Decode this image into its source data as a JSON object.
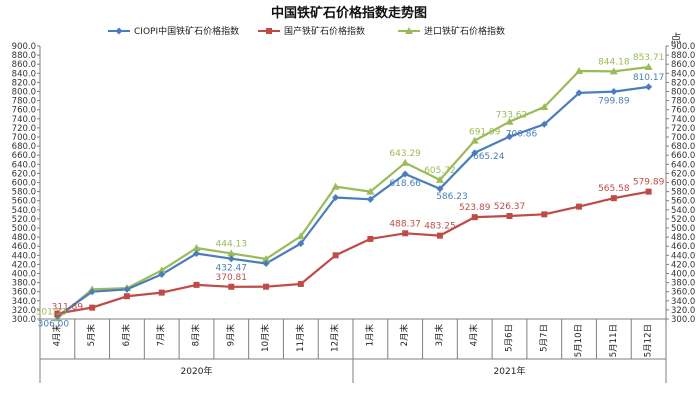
{
  "chart_data": {
    "type": "line",
    "title": "中国铁矿石价格指数走势图",
    "unit_label": "点",
    "ylim": [
      300,
      900
    ],
    "ytick_step": 20,
    "grid": false,
    "legend_position": "top",
    "categories": [
      "4月末",
      "5月末",
      "6月末",
      "7月末",
      "8月末",
      "9月末",
      "10月末",
      "11月末",
      "12月末",
      "1月末",
      "2月末",
      "3月末",
      "4月末",
      "5月6日",
      "5月7日",
      "5月10日",
      "5月11日",
      "5月12日"
    ],
    "year_groups": [
      {
        "label": "2020年",
        "start": 0,
        "end": 8
      },
      {
        "label": "2021年",
        "start": 9,
        "end": 17
      }
    ],
    "series": [
      {
        "name": "CIOPI中国铁矿石价格指数",
        "color": "#4a7ebb",
        "marker": "diamond",
        "values": [
          306.0,
          360,
          365,
          398,
          444,
          432.47,
          422,
          466,
          567,
          563,
          618.66,
          586.23,
          665.24,
          700.86,
          728,
          797,
          799.89,
          810.17
        ],
        "labels": {
          "0": "306.00",
          "5": "432.47",
          "10": "618.66",
          "11": "586.23",
          "12": "665.24",
          "13": "700.86",
          "16": "799.89",
          "17": "810.17"
        }
      },
      {
        "name": "国产铁矿石价格指数",
        "color": "#be4b48",
        "marker": "square",
        "values": [
          311.89,
          325,
          350,
          358,
          375,
          370.81,
          371,
          377,
          440,
          476,
          488.37,
          483.25,
          523.89,
          526.37,
          530,
          547,
          565.58,
          579.89
        ],
        "labels": {
          "0": "311.89",
          "5": "370.81",
          "10": "488.37",
          "11": "483.25",
          "12": "523.89",
          "13": "526.37",
          "16": "565.58",
          "17": "579.89"
        }
      },
      {
        "name": "进口铁矿石价格指数",
        "color": "#9bbb59",
        "marker": "triangle",
        "values": [
          301.53,
          365,
          368,
          407,
          456,
          444.13,
          432,
          482,
          591,
          580,
          643.29,
          605.72,
          691.99,
          733.62,
          766,
          845,
          844.18,
          853.71
        ],
        "labels": {
          "0": "301.53",
          "5": "444.13",
          "10": "643.29",
          "11": "605.72",
          "12": "691.99",
          "13": "733.62",
          "16": "844.18",
          "17": "853.71"
        }
      }
    ]
  }
}
